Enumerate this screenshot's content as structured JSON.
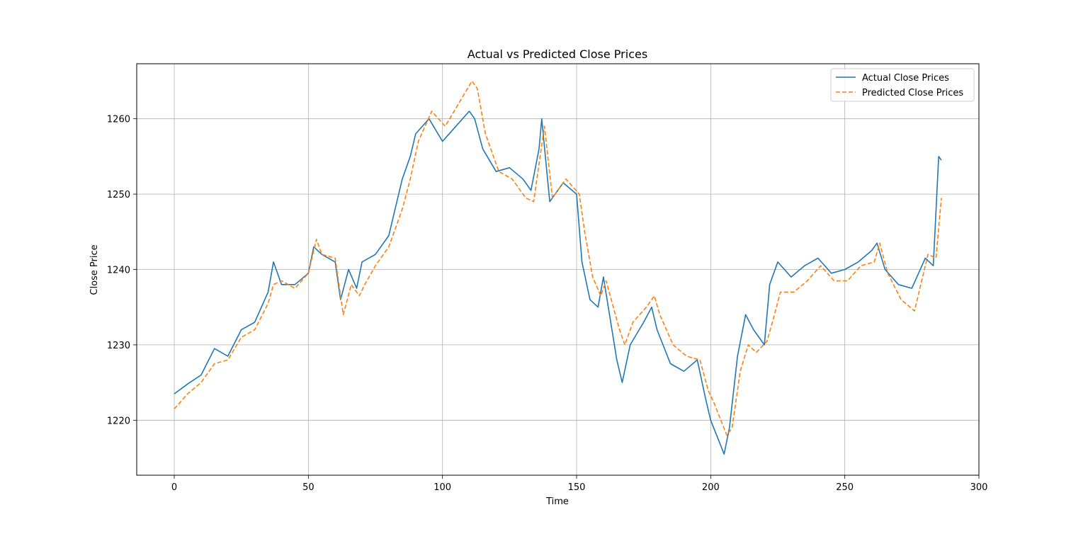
{
  "chart_data": {
    "type": "line",
    "title": "Actual vs Predicted Close Prices",
    "xlabel": "Time",
    "ylabel": "Close Price",
    "xlim": [
      -14,
      300
    ],
    "ylim": [
      1212.7,
      1267.3
    ],
    "xticks": [
      0,
      50,
      100,
      150,
      200,
      250,
      300
    ],
    "yticks": [
      1220,
      1230,
      1240,
      1250,
      1260
    ],
    "grid": true,
    "legend_position": "top-right",
    "series": [
      {
        "name": "Actual Close Prices",
        "color": "#1f77b4",
        "style": "solid",
        "points": [
          [
            0,
            1223.5
          ],
          [
            5,
            1224.8
          ],
          [
            10,
            1226.0
          ],
          [
            15,
            1229.5
          ],
          [
            20,
            1228.5
          ],
          [
            25,
            1232.0
          ],
          [
            30,
            1233.0
          ],
          [
            35,
            1237.0
          ],
          [
            37,
            1241.0
          ],
          [
            40,
            1238.0
          ],
          [
            45,
            1238.0
          ],
          [
            50,
            1239.5
          ],
          [
            52,
            1243.0
          ],
          [
            55,
            1242.0
          ],
          [
            60,
            1241.0
          ],
          [
            62,
            1236.0
          ],
          [
            65,
            1240.0
          ],
          [
            68,
            1237.5
          ],
          [
            70,
            1241.0
          ],
          [
            75,
            1242.0
          ],
          [
            80,
            1244.5
          ],
          [
            85,
            1252.0
          ],
          [
            88,
            1255.0
          ],
          [
            90,
            1258.0
          ],
          [
            95,
            1260.0
          ],
          [
            100,
            1257.0
          ],
          [
            105,
            1259.0
          ],
          [
            110,
            1261.0
          ],
          [
            112,
            1260.0
          ],
          [
            115,
            1256.0
          ],
          [
            120,
            1253.0
          ],
          [
            125,
            1253.5
          ],
          [
            130,
            1252.0
          ],
          [
            133,
            1250.5
          ],
          [
            136,
            1256.0
          ],
          [
            137,
            1260.0
          ],
          [
            140,
            1249.0
          ],
          [
            145,
            1251.5
          ],
          [
            150,
            1250.0
          ],
          [
            152,
            1241.0
          ],
          [
            155,
            1236.0
          ],
          [
            158,
            1235.0
          ],
          [
            160,
            1239.0
          ],
          [
            165,
            1228.0
          ],
          [
            167,
            1225.0
          ],
          [
            170,
            1230.0
          ],
          [
            175,
            1233.0
          ],
          [
            178,
            1235.0
          ],
          [
            180,
            1232.0
          ],
          [
            185,
            1227.5
          ],
          [
            190,
            1226.5
          ],
          [
            195,
            1228.0
          ],
          [
            198,
            1223.0
          ],
          [
            200,
            1220.0
          ],
          [
            205,
            1215.5
          ],
          [
            207,
            1219.0
          ],
          [
            210,
            1228.5
          ],
          [
            213,
            1234.0
          ],
          [
            216,
            1232.0
          ],
          [
            220,
            1230.0
          ],
          [
            222,
            1238.0
          ],
          [
            225,
            1241.0
          ],
          [
            230,
            1239.0
          ],
          [
            235,
            1240.5
          ],
          [
            240,
            1241.5
          ],
          [
            245,
            1239.5
          ],
          [
            250,
            1240.0
          ],
          [
            255,
            1241.0
          ],
          [
            260,
            1242.5
          ],
          [
            262,
            1243.5
          ],
          [
            265,
            1240.0
          ],
          [
            270,
            1238.0
          ],
          [
            275,
            1237.5
          ],
          [
            280,
            1241.5
          ],
          [
            283,
            1240.5
          ],
          [
            285,
            1255.0
          ],
          [
            286,
            1254.5
          ]
        ]
      },
      {
        "name": "Predicted Close Prices",
        "color": "#ff7f0e",
        "style": "dashed",
        "points": [
          [
            0,
            1221.5
          ],
          [
            5,
            1223.5
          ],
          [
            10,
            1225.0
          ],
          [
            15,
            1227.5
          ],
          [
            20,
            1228.0
          ],
          [
            25,
            1231.0
          ],
          [
            30,
            1232.0
          ],
          [
            35,
            1235.5
          ],
          [
            37,
            1238.0
          ],
          [
            40,
            1238.5
          ],
          [
            45,
            1237.5
          ],
          [
            50,
            1239.5
          ],
          [
            53,
            1244.0
          ],
          [
            55,
            1242.0
          ],
          [
            60,
            1241.5
          ],
          [
            63,
            1234.0
          ],
          [
            66,
            1238.0
          ],
          [
            69,
            1236.5
          ],
          [
            71,
            1238.0
          ],
          [
            75,
            1240.5
          ],
          [
            80,
            1243.0
          ],
          [
            85,
            1248.0
          ],
          [
            88,
            1252.0
          ],
          [
            91,
            1257.0
          ],
          [
            96,
            1261.0
          ],
          [
            101,
            1259.0
          ],
          [
            106,
            1262.0
          ],
          [
            111,
            1265.0
          ],
          [
            113,
            1264.0
          ],
          [
            116,
            1258.0
          ],
          [
            121,
            1253.0
          ],
          [
            126,
            1252.0
          ],
          [
            131,
            1249.5
          ],
          [
            134,
            1249.0
          ],
          [
            138,
            1259.0
          ],
          [
            141,
            1249.5
          ],
          [
            146,
            1252.0
          ],
          [
            151,
            1250.0
          ],
          [
            153,
            1245.0
          ],
          [
            156,
            1239.0
          ],
          [
            159,
            1236.5
          ],
          [
            161,
            1238.5
          ],
          [
            166,
            1232.0
          ],
          [
            168,
            1230.0
          ],
          [
            171,
            1233.0
          ],
          [
            176,
            1235.0
          ],
          [
            179,
            1236.5
          ],
          [
            181,
            1234.0
          ],
          [
            186,
            1230.0
          ],
          [
            191,
            1228.5
          ],
          [
            196,
            1228.0
          ],
          [
            199,
            1224.0
          ],
          [
            201,
            1222.5
          ],
          [
            206,
            1218.0
          ],
          [
            208,
            1219.0
          ],
          [
            211,
            1226.5
          ],
          [
            214,
            1230.0
          ],
          [
            217,
            1229.0
          ],
          [
            221,
            1230.5
          ],
          [
            223,
            1233.0
          ],
          [
            226,
            1237.0
          ],
          [
            231,
            1237.0
          ],
          [
            236,
            1238.5
          ],
          [
            241,
            1240.5
          ],
          [
            246,
            1238.5
          ],
          [
            251,
            1238.5
          ],
          [
            256,
            1240.5
          ],
          [
            261,
            1241.0
          ],
          [
            263,
            1243.5
          ],
          [
            266,
            1239.5
          ],
          [
            271,
            1236.0
          ],
          [
            276,
            1234.5
          ],
          [
            281,
            1242.0
          ],
          [
            284,
            1241.5
          ],
          [
            286,
            1249.5
          ]
        ]
      }
    ]
  }
}
